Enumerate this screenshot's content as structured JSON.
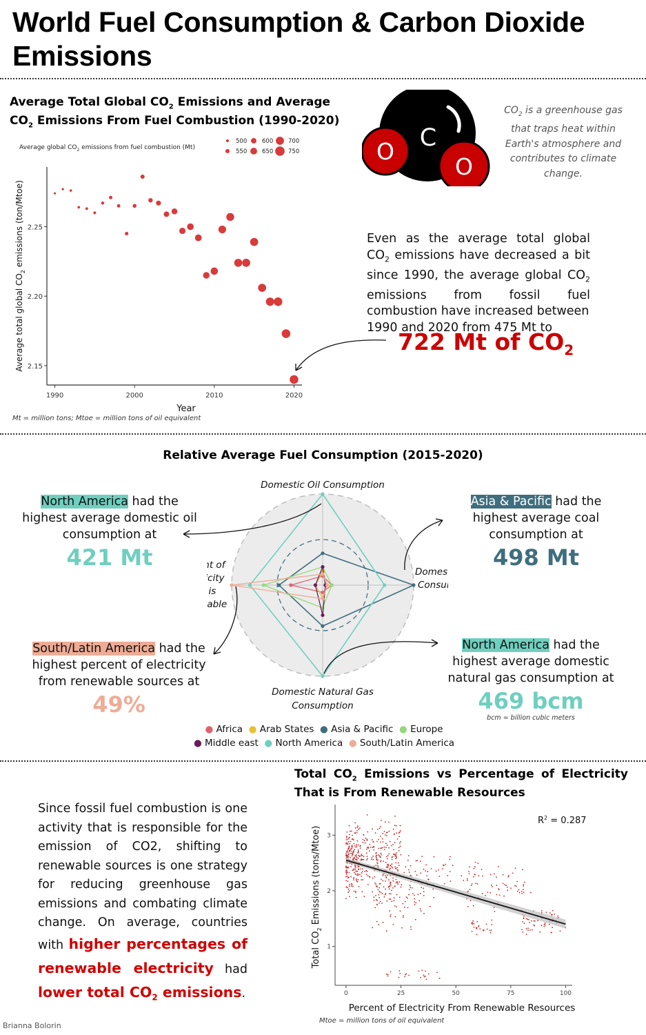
{
  "title": "World Fuel Consumption & Carbon Dioxide Emissions",
  "section1": {
    "title_line1_a": "Average Total Global CO",
    "title_line1_b": " Emissions and Average",
    "title_line2_a": "CO",
    "title_line2_b": " Emissions From Fuel Combustion (1990-2020)",
    "sub2": "2",
    "legend_title_a": "Average global CO",
    "legend_title_b": " emissions from fuel combustion (Mt)",
    "legend_sizes": [
      "500",
      "550",
      "600",
      "650",
      "700",
      "750"
    ],
    "ylabel_a": "Average total global CO",
    "ylabel_b": " emissions (ton/Mtoe)",
    "xlabel": "Year",
    "footnote": "Mt = million tons; Mtoe = million tons of oil equivalent",
    "co2_blurb_a": "CO",
    "co2_blurb_b": " is a greenhouse gas that traps heat within Earth's atmosphere and contributes to climate change.",
    "molecule": {
      "left": "O",
      "center": "C",
      "right": "O"
    },
    "para_a": "Even as the average total global",
    "para_b": "CO",
    "para_c": " emissions have decreased a bit",
    "para_d": "since 1990, the average global CO",
    "para_e": "emissions from fossil fuel",
    "para_f": "combustion have increased between",
    "para_g": "1990 and 2020 from 475 Mt to",
    "big_value": "722 Mt of CO",
    "big_value_sub": "2"
  },
  "chart_data": [
    {
      "type": "scatter",
      "title": "Average Total Global CO2 Emissions and Average CO2 Emissions From Fuel Combustion (1990-2020)",
      "xlabel": "Year",
      "ylabel": "Average total global CO2 emissions (ton/Mtoe)",
      "xlim": [
        1989,
        2021
      ],
      "ylim": [
        2.14,
        2.29
      ],
      "xticks": [
        1990,
        2000,
        2010,
        2020
      ],
      "yticks": [
        2.15,
        2.2,
        2.25
      ],
      "size_legend_title": "Average global CO2 emissions from fuel combustion (Mt)",
      "size_legend": [
        500,
        550,
        600,
        650,
        700,
        750
      ],
      "points": [
        {
          "x": 1990,
          "y": 2.274,
          "size": 475
        },
        {
          "x": 1991,
          "y": 2.277,
          "size": 480
        },
        {
          "x": 1992,
          "y": 2.276,
          "size": 485
        },
        {
          "x": 1993,
          "y": 2.264,
          "size": 490
        },
        {
          "x": 1994,
          "y": 2.263,
          "size": 495
        },
        {
          "x": 1995,
          "y": 2.26,
          "size": 500
        },
        {
          "x": 1996,
          "y": 2.267,
          "size": 510
        },
        {
          "x": 1997,
          "y": 2.271,
          "size": 525
        },
        {
          "x": 1998,
          "y": 2.265,
          "size": 520
        },
        {
          "x": 1999,
          "y": 2.245,
          "size": 525
        },
        {
          "x": 2000,
          "y": 2.265,
          "size": 540
        },
        {
          "x": 2001,
          "y": 2.286,
          "size": 550
        },
        {
          "x": 2002,
          "y": 2.269,
          "size": 560
        },
        {
          "x": 2003,
          "y": 2.267,
          "size": 580
        },
        {
          "x": 2004,
          "y": 2.259,
          "size": 600
        },
        {
          "x": 2005,
          "y": 2.261,
          "size": 615
        },
        {
          "x": 2006,
          "y": 2.247,
          "size": 630
        },
        {
          "x": 2007,
          "y": 2.25,
          "size": 645
        },
        {
          "x": 2008,
          "y": 2.242,
          "size": 650
        },
        {
          "x": 2009,
          "y": 2.215,
          "size": 640
        },
        {
          "x": 2010,
          "y": 2.218,
          "size": 670
        },
        {
          "x": 2011,
          "y": 2.248,
          "size": 685
        },
        {
          "x": 2012,
          "y": 2.257,
          "size": 690
        },
        {
          "x": 2013,
          "y": 2.224,
          "size": 695
        },
        {
          "x": 2014,
          "y": 2.224,
          "size": 700
        },
        {
          "x": 2015,
          "y": 2.239,
          "size": 698
        },
        {
          "x": 2016,
          "y": 2.206,
          "size": 700
        },
        {
          "x": 2017,
          "y": 2.196,
          "size": 710
        },
        {
          "x": 2018,
          "y": 2.196,
          "size": 720
        },
        {
          "x": 2019,
          "y": 2.173,
          "size": 722
        },
        {
          "x": 2020,
          "y": 2.14,
          "size": 722
        }
      ]
    },
    {
      "type": "radar",
      "title": "Relative Average Fuel Consumption (2015-2020)",
      "axes": [
        "Domestic Oil Consumption",
        "Domestic Coal Consumption",
        "Domestic Natural Gas Consumption",
        "Percent of Electricity that is Renewable"
      ],
      "series": [
        {
          "name": "Africa",
          "color": "#e06070",
          "values": [
            0.1,
            0.1,
            0.08,
            0.35
          ]
        },
        {
          "name": "Arab States",
          "color": "#e8c030",
          "values": [
            0.15,
            0.05,
            0.14,
            0.08
          ]
        },
        {
          "name": "Asia & Pacific",
          "color": "#3f6e7e",
          "values": [
            0.35,
            1.0,
            0.45,
            0.48
          ]
        },
        {
          "name": "Europe",
          "color": "#95d87a",
          "values": [
            0.2,
            0.1,
            0.25,
            0.65
          ]
        },
        {
          "name": "Middle east",
          "color": "#6b1a5c",
          "values": [
            0.2,
            0.03,
            0.33,
            0.08
          ]
        },
        {
          "name": "North America",
          "color": "#6fcfbf",
          "values": [
            1.0,
            0.68,
            1.0,
            0.8
          ]
        },
        {
          "name": "South/Latin America",
          "color": "#eeac96",
          "values": [
            0.12,
            0.05,
            0.15,
            1.0
          ]
        }
      ]
    },
    {
      "type": "scatter",
      "title": "Total CO2 Emissions vs Percentage of Electricity That is From Renewable Resources",
      "xlabel": "Percent of Electricity From Renewable Resources",
      "ylabel": "Total CO2 Emissions (tons/Mtoe)",
      "xlim": [
        -5,
        103
      ],
      "ylim": [
        0.3,
        3.55
      ],
      "xticks": [
        0,
        25,
        50,
        75,
        100
      ],
      "yticks": [
        1,
        2,
        3
      ],
      "r_squared": 0.287,
      "trend": {
        "x": [
          0,
          100
        ],
        "y": [
          2.55,
          1.4
        ]
      },
      "clusters": [
        {
          "x": [
            0,
            25
          ],
          "y": [
            1.8,
            3.4
          ],
          "n": 330
        },
        {
          "x": [
            0,
            6
          ],
          "y": [
            2.0,
            3.1
          ],
          "n": 90
        },
        {
          "x": [
            12,
            40
          ],
          "y": [
            1.2,
            2.6
          ],
          "n": 110
        },
        {
          "x": [
            20,
            62
          ],
          "y": [
            2.0,
            2.7
          ],
          "n": 70
        },
        {
          "x": [
            55,
            85
          ],
          "y": [
            1.6,
            2.5
          ],
          "n": 60
        },
        {
          "x": [
            80,
            100
          ],
          "y": [
            1.2,
            1.7
          ],
          "n": 60
        },
        {
          "x": [
            57,
            67
          ],
          "y": [
            1.15,
            1.5
          ],
          "n": 25
        },
        {
          "x": [
            18,
            43
          ],
          "y": [
            0.4,
            0.6
          ],
          "n": 22
        }
      ]
    }
  ],
  "section2": {
    "title": "Relative Average Fuel Consumption (2015-2020)",
    "axis_top": "Domestic Oil Consumption",
    "axis_right": [
      "Domestic Coal",
      "Consumption"
    ],
    "axis_bottom": [
      "Domestic Natural Gas",
      "Consumption"
    ],
    "axis_left": [
      "Percent of",
      "Electricity",
      "that is",
      "Renewable"
    ],
    "na_oil": {
      "hl": "North America",
      "rest": " had the",
      "line2": "highest average domestic oil",
      "line3": "consumption at",
      "value": "421 Mt"
    },
    "asia_coal": {
      "hl": "Asia & Pacific",
      "rest": " had the",
      "line2": "highest average coal",
      "line3": "consumption at",
      "value": "498 Mt"
    },
    "sla_ren": {
      "hl": "South/Latin America",
      "rest": " had the",
      "line2": "highest percent of electricity",
      "line3": "from renewable sources at",
      "value": "49%"
    },
    "na_gas": {
      "hl": "North America",
      "rest": " had the",
      "line2": "highest average domestic",
      "line3": "natural gas consumption at",
      "value": "469 bcm",
      "note": "bcm = billion cubic meters"
    },
    "legend": [
      "Africa",
      "Arab States",
      "Asia & Pacific",
      "Europe",
      "Middle east",
      "North America",
      "South/Latin America"
    ],
    "colors": {
      "teal": "#6fcfbf",
      "dark_teal": "#3f6e7e",
      "salmon": "#eeac96"
    }
  },
  "section3": {
    "title_line1_a": "Total CO",
    "title_line1_b": " Emissions vs Percentage of Electricity",
    "title_line2": "That is From Renewable Resources",
    "sub2": "2",
    "r2_a": "R",
    "r2_sup": "2",
    "r2_b": " = 0.287",
    "ylabel_a": "Total CO",
    "ylabel_b": " Emissions (tons/Mtoe)",
    "xlabel": "Percent of Electricity From Renewable Resources",
    "footnote": "Mtoe = million tons of oil equivalent",
    "p_line1": "Since fossil fuel combustion is one",
    "p_line2": "activity that is responsible for the",
    "p_line3": "emission of CO2, shifting to",
    "p_line4": "renewable sources is one strategy",
    "p_line5": "for reducing greenhouse gas",
    "p_line6": "emissions and combating climate",
    "p_line7": "change. On average, countries",
    "p_line8_a": "with ",
    "p_line8_b": "higher percentages of",
    "p_line9_a": "renewable electricity",
    "p_line9_b": " had",
    "p_line10_a": "lower total CO",
    "p_line10_sub": "2",
    "p_line10_b": " emissions",
    "p_line10_c": "."
  },
  "author": "Brianna Bolorin",
  "accent_red": "#cc0000",
  "point_red": "#d93a3a"
}
